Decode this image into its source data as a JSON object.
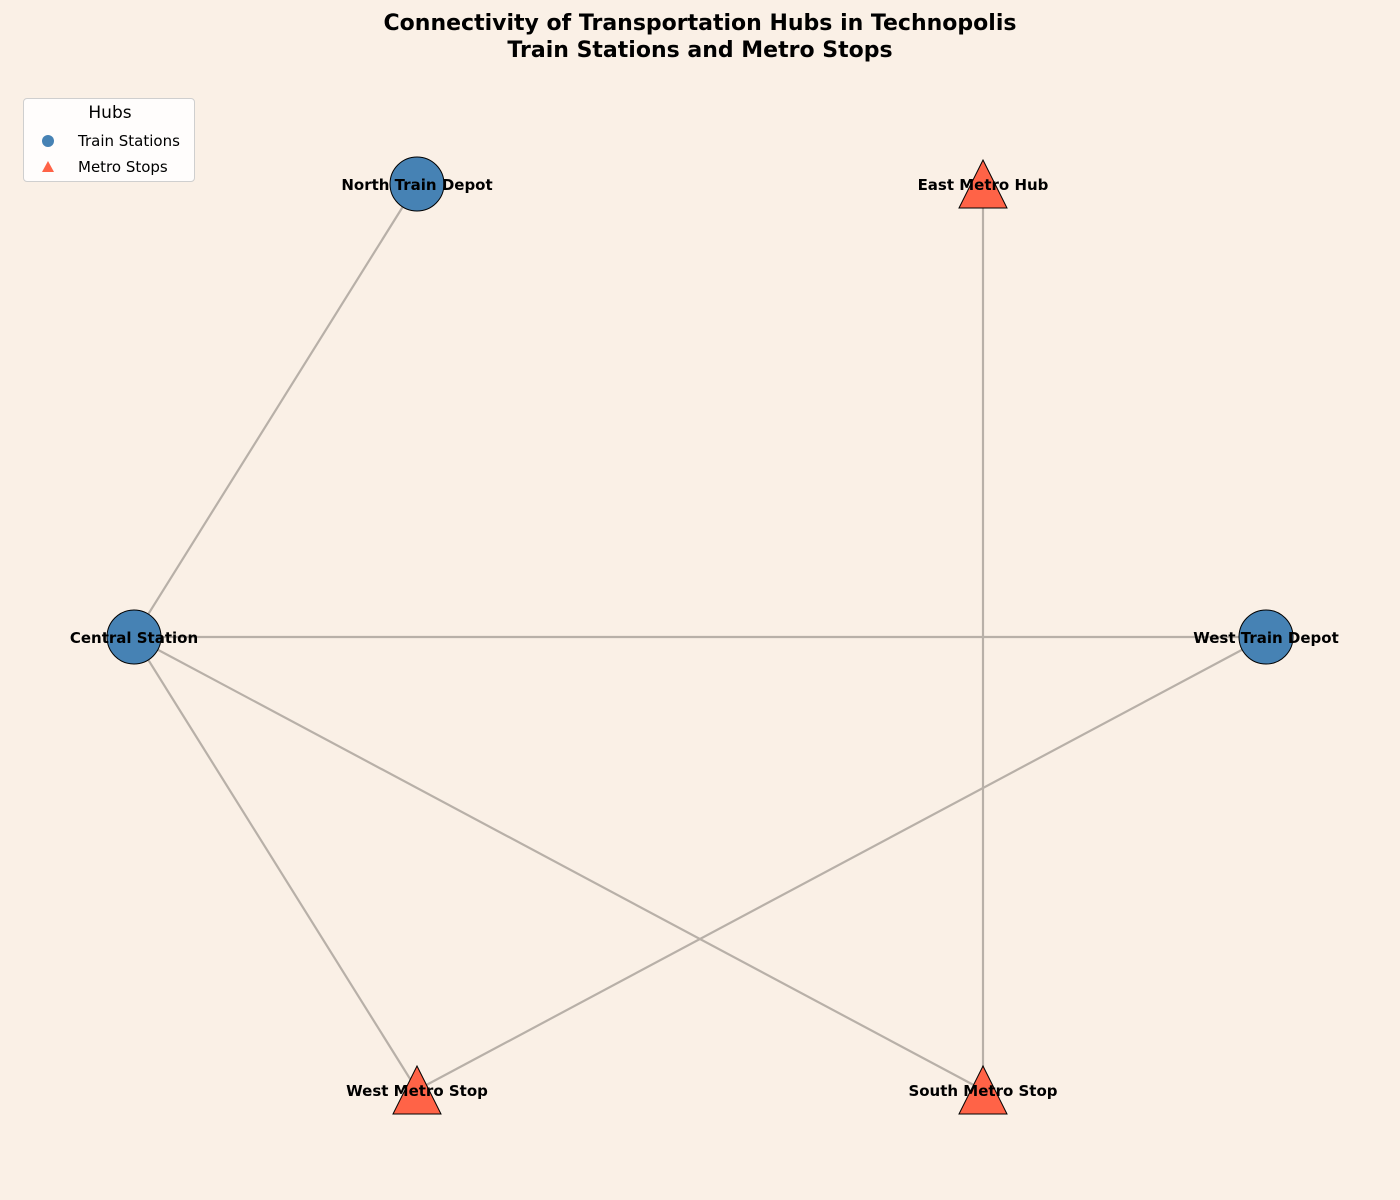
{
  "title": {
    "line1": "Connectivity of Transportation Hubs in Technopolis",
    "line2": "Train Stations and Metro Stops"
  },
  "legend": {
    "title": "Hubs",
    "items": [
      {
        "label": "Train Stations",
        "shape": "circle",
        "color": "#4682b4"
      },
      {
        "label": "Metro Stops",
        "shape": "triangle",
        "color": "#ff6347"
      }
    ]
  },
  "colors": {
    "background": "#faf0e6",
    "edge": "#b8b0a8",
    "train_station": "#4682b4",
    "metro_stop": "#ff6347",
    "node_outline": "#000000"
  },
  "nodes": [
    {
      "id": "north-train-depot",
      "label": "North Train Depot",
      "type": "train_station"
    },
    {
      "id": "east-metro-hub",
      "label": "East Metro Hub",
      "type": "metro_stop"
    },
    {
      "id": "central-station",
      "label": "Central Station",
      "type": "train_station"
    },
    {
      "id": "west-train-depot",
      "label": "West Train Depot",
      "type": "train_station"
    },
    {
      "id": "west-metro-stop",
      "label": "West Metro Stop",
      "type": "metro_stop"
    },
    {
      "id": "south-metro-stop",
      "label": "South Metro Stop",
      "type": "metro_stop"
    }
  ],
  "edges": [
    {
      "source": "central-station",
      "target": "north-train-depot"
    },
    {
      "source": "central-station",
      "target": "west-train-depot"
    },
    {
      "source": "central-station",
      "target": "west-metro-stop"
    },
    {
      "source": "central-station",
      "target": "south-metro-stop"
    },
    {
      "source": "east-metro-hub",
      "target": "south-metro-stop"
    },
    {
      "source": "west-train-depot",
      "target": "west-metro-stop"
    }
  ]
}
